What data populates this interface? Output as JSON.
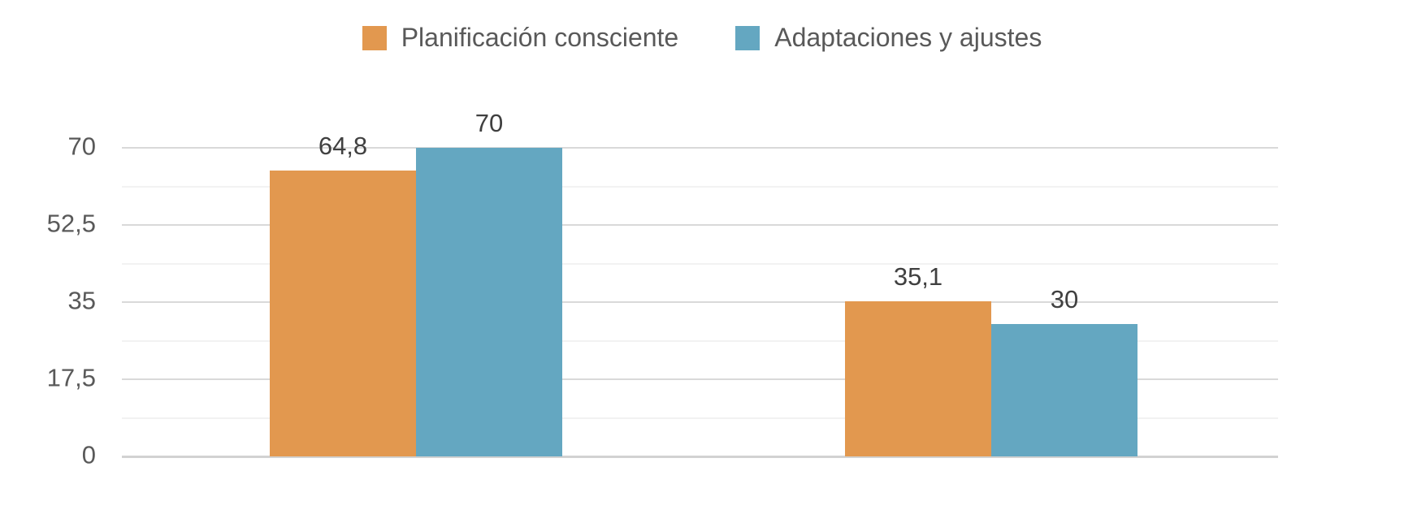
{
  "chart_data": {
    "type": "bar",
    "title": "",
    "xlabel": "",
    "ylabel": "",
    "categories": [
      "",
      ""
    ],
    "series": [
      {
        "name": "Planificación consciente",
        "color": "#e2984f",
        "values": [
          64.8,
          35.1
        ],
        "value_labels": [
          "64,8",
          "35,1"
        ]
      },
      {
        "name": "Adaptaciones y ajustes",
        "color": "#64a7c1",
        "values": [
          70,
          30
        ],
        "value_labels": [
          "70",
          "30"
        ]
      }
    ],
    "ylim": [
      0,
      70
    ],
    "yticks": [
      {
        "value": 70,
        "label": "70"
      },
      {
        "value": 52.5,
        "label": "52,5"
      },
      {
        "value": 35,
        "label": "35"
      },
      {
        "value": 17.5,
        "label": "17,5"
      },
      {
        "value": 0,
        "label": "0"
      }
    ],
    "minor_gridline_step": 8.75,
    "grid": true,
    "legend_position": "top-center",
    "colors": {
      "tick_label": "#595959",
      "value_label": "#404040",
      "legend_label": "#595959",
      "gridline_major": "#d9d9d9",
      "gridline_minor": "#f2f2f2",
      "baseline": "#d2d2d2",
      "background": "#ffffff"
    }
  }
}
